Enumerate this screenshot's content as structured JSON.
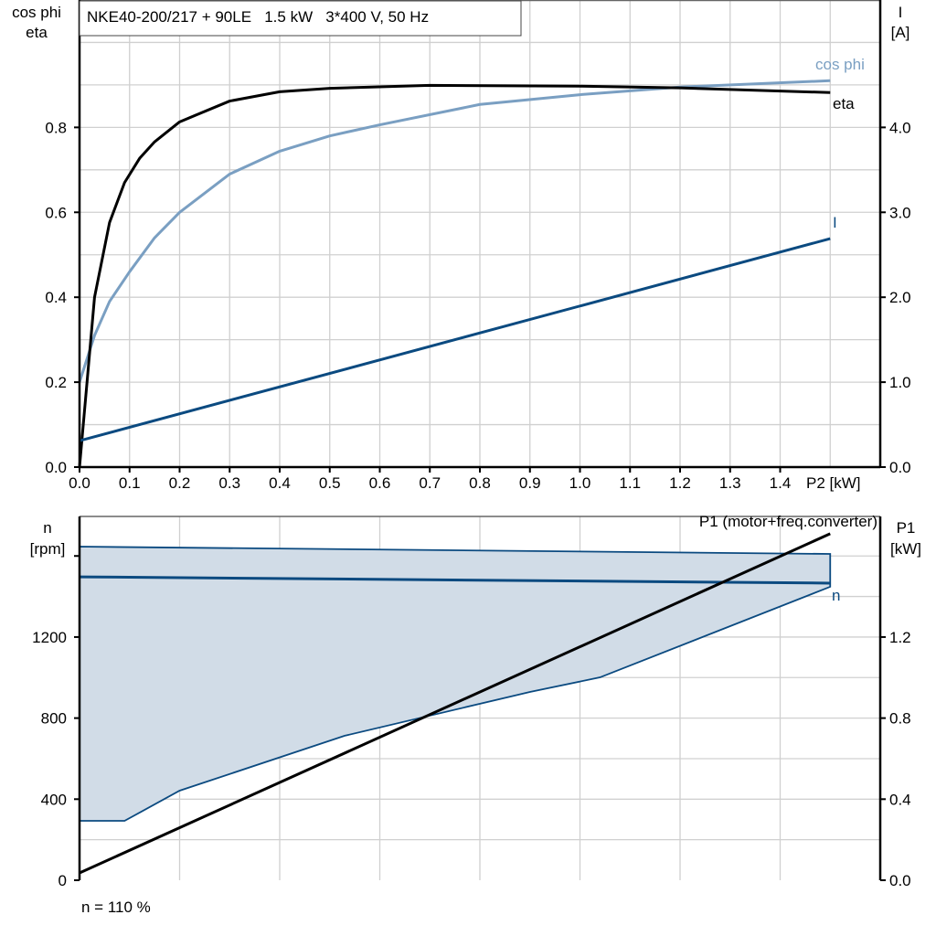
{
  "chart_data": [
    {
      "type": "line",
      "title": "NKE40-200/217 + 90LE   1.5 kW   3*400 V, 50 Hz",
      "xlabel": "P2 [kW]",
      "ylabel_left": [
        "cos phi",
        "eta"
      ],
      "ylabel_right": [
        "I",
        "[A]"
      ],
      "xlim": [
        0,
        1.6
      ],
      "ylim_left": [
        0,
        1.1
      ],
      "ylim_right": [
        0,
        5.5
      ],
      "grid": true,
      "x_ticks": [
        "0.0",
        "0.1",
        "0.2",
        "0.3",
        "0.4",
        "0.5",
        "0.6",
        "0.7",
        "0.8",
        "0.9",
        "1.0",
        "1.1",
        "1.2",
        "1.3",
        "1.4"
      ],
      "y_ticks_left": [
        "0.0",
        "0.2",
        "0.4",
        "0.6",
        "0.8"
      ],
      "y_ticks_right": [
        "0.0",
        "1.0",
        "2.0",
        "3.0",
        "4.0"
      ],
      "series": [
        {
          "name": "cos phi",
          "axis": "left",
          "color": "#7a9fc2",
          "x": [
            0,
            0.03,
            0.06,
            0.1,
            0.15,
            0.2,
            0.3,
            0.4,
            0.5,
            0.6,
            0.8,
            1.0,
            1.2,
            1.5
          ],
          "y": [
            0.2,
            0.31,
            0.39,
            0.46,
            0.54,
            0.6,
            0.69,
            0.744,
            0.78,
            0.806,
            0.854,
            0.877,
            0.895,
            0.91
          ]
        },
        {
          "name": "eta",
          "axis": "left",
          "color": "#000000",
          "x": [
            0,
            0.03,
            0.06,
            0.09,
            0.12,
            0.15,
            0.2,
            0.3,
            0.4,
            0.5,
            0.7,
            1.0,
            1.2,
            1.5
          ],
          "y": [
            0,
            0.4,
            0.576,
            0.67,
            0.727,
            0.766,
            0.813,
            0.862,
            0.884,
            0.892,
            0.899,
            0.897,
            0.893,
            0.882
          ]
        },
        {
          "name": "I",
          "axis": "right",
          "color": "#0b4a80",
          "x": [
            0,
            1.5
          ],
          "y": [
            0.31,
            2.69
          ]
        }
      ]
    },
    {
      "type": "area",
      "xlim": [
        0,
        1.6
      ],
      "ylabel_left": [
        "n",
        "[rpm]"
      ],
      "ylabel_right": [
        "P1",
        "[kW]"
      ],
      "ylim_left": [
        0,
        1795
      ],
      "ylim_right": [
        0,
        1.795
      ],
      "grid": true,
      "y_ticks_left": [
        "0",
        "400",
        "800",
        "1200"
      ],
      "y_ticks_right": [
        "0.0",
        "0.4",
        "0.8",
        "1.2"
      ],
      "footnote": "n = 110 %",
      "n_range": {
        "color": "#0b4a80",
        "fill": "#d1dce7",
        "upper": {
          "x": [
            0,
            1.5
          ],
          "y": [
            1646,
            1610
          ]
        },
        "lower": {
          "x": [
            0,
            0.09,
            0.2,
            0.53,
            0.9,
            1.04,
            1.5
          ],
          "y": [
            293,
            293,
            442,
            713,
            929,
            1001,
            1448
          ]
        }
      },
      "series": [
        {
          "name": "n",
          "axis": "left",
          "color": "#0b4a80",
          "x": [
            0,
            1.5
          ],
          "y": [
            1497,
            1466
          ]
        },
        {
          "name": "P1 (motor+freq.converter)",
          "axis": "right",
          "color": "#000000",
          "x": [
            0,
            1.5
          ],
          "y": [
            0.036,
            1.71
          ]
        }
      ]
    }
  ]
}
